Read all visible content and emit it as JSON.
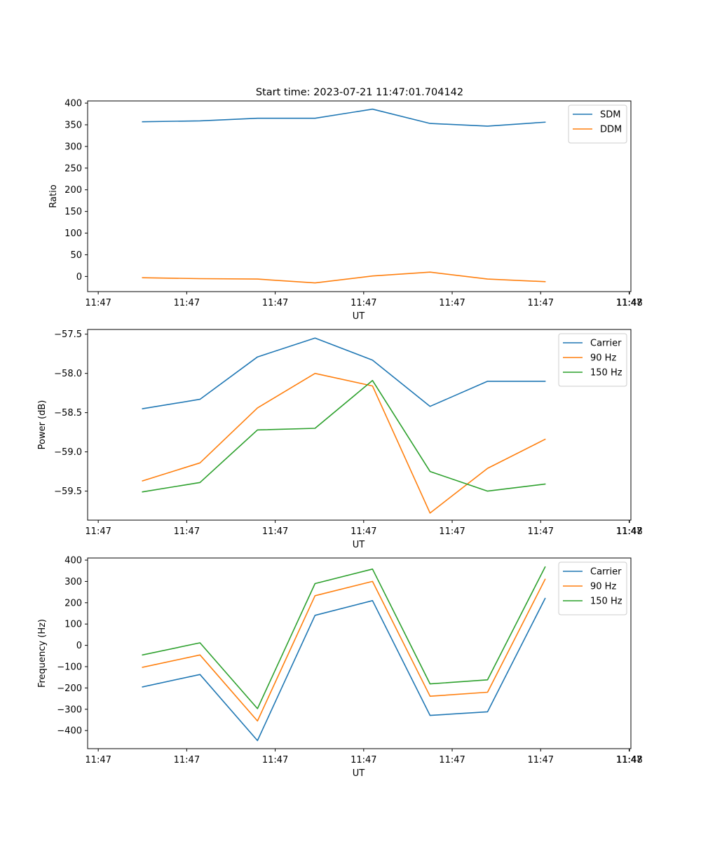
{
  "figure": {
    "title": "Start time: 2023-07-21 11:47:01.704142"
  },
  "chart_data": [
    {
      "type": "line",
      "xlabel": "UT",
      "ylabel": "Ratio",
      "x_tick_labels": [
        "11:47",
        "11:47",
        "11:47",
        "11:47",
        "11:47",
        "11:47",
        "11:47"
      ],
      "x_last_tick_label": "11:48",
      "x_tick_seconds": [
        0,
        1,
        2,
        3,
        4,
        5,
        6
      ],
      "x_last_tick_seconds": 6,
      "x_range_seconds": [
        -0.12,
        6.02
      ],
      "x_seconds": [
        0.5,
        1.15,
        1.8,
        2.45,
        3.1,
        3.75,
        4.4,
        5.05
      ],
      "ylim": [
        -35,
        405
      ],
      "y_ticks": [
        0,
        50,
        100,
        150,
        200,
        250,
        300,
        350,
        400
      ],
      "y_tick_labels": [
        "0",
        "50",
        "100",
        "150",
        "200",
        "250",
        "300",
        "350",
        "400"
      ],
      "legend_position": "top-right",
      "series": [
        {
          "name": "SDM",
          "color": "#1f77b4",
          "values": [
            357,
            359,
            365,
            365,
            386,
            353,
            347,
            356
          ]
        },
        {
          "name": "DDM",
          "color": "#ff7f0e",
          "values": [
            -3,
            -5,
            -6,
            -15,
            1,
            10,
            -6,
            -12
          ]
        }
      ]
    },
    {
      "type": "line",
      "xlabel": "UT",
      "ylabel": "Power (dB)",
      "x_tick_labels": [
        "11:47",
        "11:47",
        "11:47",
        "11:47",
        "11:47",
        "11:47",
        "11:47"
      ],
      "x_last_tick_label": "11:48",
      "x_tick_seconds": [
        0,
        1,
        2,
        3,
        4,
        5,
        6
      ],
      "x_last_tick_seconds": 6,
      "x_range_seconds": [
        -0.12,
        6.02
      ],
      "x_seconds": [
        0.5,
        1.15,
        1.8,
        2.45,
        3.1,
        3.75,
        4.4,
        5.05
      ],
      "ylim": [
        -59.87,
        -57.44
      ],
      "y_ticks": [
        -59.5,
        -59.0,
        -58.5,
        -58.0,
        -57.5
      ],
      "y_tick_labels": [
        "−59.5",
        "−59.0",
        "−58.5",
        "−58.0",
        "−57.5"
      ],
      "legend_position": "top-right",
      "series": [
        {
          "name": "Carrier",
          "color": "#1f77b4",
          "values": [
            -58.45,
            -58.33,
            -57.79,
            -57.55,
            -57.83,
            -58.42,
            -58.1,
            -58.1
          ]
        },
        {
          "name": "90 Hz",
          "color": "#ff7f0e",
          "values": [
            -59.37,
            -59.14,
            -58.44,
            -58.0,
            -58.16,
            -59.78,
            -59.21,
            -58.84
          ]
        },
        {
          "name": "150 Hz",
          "color": "#2ca02c",
          "values": [
            -59.51,
            -59.39,
            -58.72,
            -58.7,
            -58.09,
            -59.25,
            -59.5,
            -59.41
          ]
        }
      ]
    },
    {
      "type": "line",
      "xlabel": "UT",
      "ylabel": "Frequency (Hz)",
      "x_tick_labels": [
        "11:47",
        "11:47",
        "11:47",
        "11:47",
        "11:47",
        "11:47",
        "11:47"
      ],
      "x_last_tick_label": "11:48",
      "x_tick_seconds": [
        0,
        1,
        2,
        3,
        4,
        5,
        6
      ],
      "x_last_tick_seconds": 6,
      "x_range_seconds": [
        -0.12,
        6.02
      ],
      "x_seconds": [
        0.5,
        1.15,
        1.8,
        2.45,
        3.1,
        3.75,
        4.4,
        5.05
      ],
      "ylim": [
        -485,
        410
      ],
      "y_ticks": [
        -400,
        -300,
        -200,
        -100,
        0,
        100,
        200,
        300,
        400
      ],
      "y_tick_labels": [
        "−400",
        "−300",
        "−200",
        "−100",
        "0",
        "100",
        "200",
        "300",
        "400"
      ],
      "legend_position": "top-right",
      "series": [
        {
          "name": "Carrier",
          "color": "#1f77b4",
          "values": [
            -195,
            -137,
            -447,
            141,
            210,
            -329,
            -312,
            220
          ]
        },
        {
          "name": "90 Hz",
          "color": "#ff7f0e",
          "values": [
            -103,
            -45,
            -355,
            233,
            300,
            -239,
            -220,
            310
          ]
        },
        {
          "name": "150 Hz",
          "color": "#2ca02c",
          "values": [
            -45,
            12,
            -297,
            290,
            358,
            -181,
            -162,
            368
          ]
        }
      ]
    }
  ]
}
